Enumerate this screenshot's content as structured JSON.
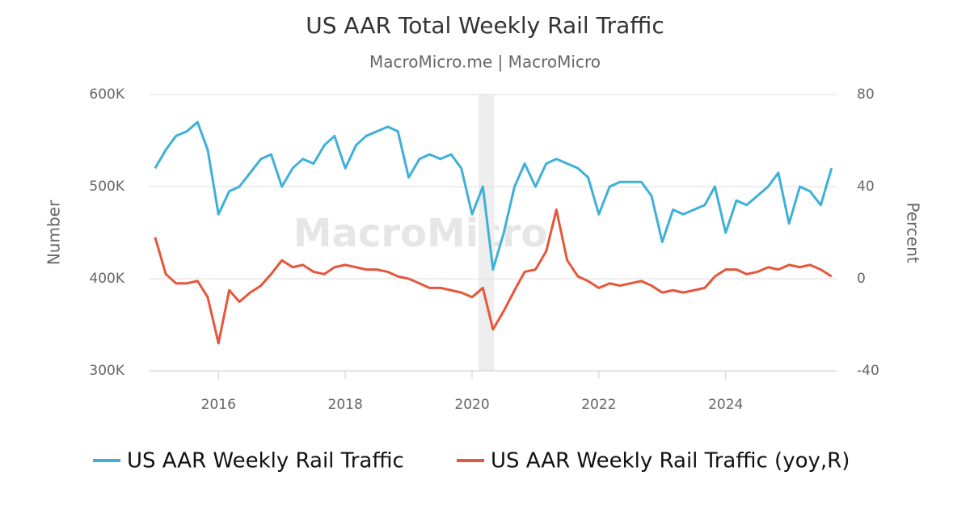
{
  "chart_data": {
    "type": "line",
    "title": "US AAR Total Weekly Rail Traffic",
    "subtitle": "MacroMicro.me | MacroMicro",
    "watermark": "MacroMicro",
    "y_label": "Number",
    "y2_label": "Percent",
    "xlim": [
      2014.9,
      2025.75
    ],
    "xticks": [
      2016,
      2018,
      2020,
      2022,
      2024
    ],
    "ylim": [
      300000,
      600000
    ],
    "yticks": [
      {
        "value": 300000,
        "label": "300K"
      },
      {
        "value": 400000,
        "label": "400K"
      },
      {
        "value": 500000,
        "label": "500K"
      },
      {
        "value": 600000,
        "label": "600K"
      }
    ],
    "y2lim": [
      -40,
      80
    ],
    "y2ticks": [
      -40,
      0,
      40,
      80
    ],
    "grid": true,
    "legend": "bottom",
    "shaded_periods": [
      [
        2020.1,
        2020.35
      ]
    ],
    "x": [
      2015,
      2015.17,
      2015.33,
      2015.5,
      2015.67,
      2015.83,
      2016,
      2016.17,
      2016.33,
      2016.5,
      2016.67,
      2016.83,
      2017,
      2017.17,
      2017.33,
      2017.5,
      2017.67,
      2017.83,
      2018,
      2018.17,
      2018.33,
      2018.5,
      2018.67,
      2018.83,
      2019,
      2019.17,
      2019.33,
      2019.5,
      2019.67,
      2019.83,
      2020,
      2020.17,
      2020.33,
      2020.5,
      2020.67,
      2020.83,
      2021,
      2021.17,
      2021.33,
      2021.5,
      2021.67,
      2021.83,
      2022,
      2022.17,
      2022.33,
      2022.5,
      2022.67,
      2022.83,
      2023,
      2023.17,
      2023.33,
      2023.5,
      2023.67,
      2023.83,
      2024,
      2024.17,
      2024.33,
      2024.5,
      2024.67,
      2024.83,
      2025,
      2025.17,
      2025.33,
      2025.5,
      2025.67
    ],
    "series": [
      {
        "name": "US AAR Weekly Rail Traffic",
        "color": "#3eb0d8",
        "axis": "y",
        "values": [
          520000,
          540000,
          555000,
          560000,
          570000,
          540000,
          470000,
          495000,
          500000,
          515000,
          530000,
          535000,
          500000,
          520000,
          530000,
          525000,
          545000,
          555000,
          520000,
          545000,
          555000,
          560000,
          565000,
          560000,
          510000,
          530000,
          535000,
          530000,
          535000,
          520000,
          470000,
          500000,
          410000,
          450000,
          500000,
          525000,
          500000,
          525000,
          530000,
          525000,
          520000,
          510000,
          470000,
          500000,
          505000,
          505000,
          505000,
          490000,
          440000,
          475000,
          470000,
          475000,
          480000,
          500000,
          450000,
          485000,
          480000,
          490000,
          500000,
          515000,
          460000,
          500000,
          495000,
          480000,
          520000
        ]
      },
      {
        "name": "US AAR Weekly Rail Traffic (yoy,R)",
        "color": "#e4573b",
        "axis": "y2",
        "values": [
          18,
          2,
          -2,
          -2,
          -1,
          -8,
          -28,
          -5,
          -10,
          -6,
          -3,
          2,
          8,
          5,
          6,
          3,
          2,
          5,
          6,
          5,
          4,
          4,
          3,
          1,
          0,
          -2,
          -4,
          -4,
          -5,
          -6,
          -8,
          -4,
          -22,
          -14,
          -5,
          3,
          4,
          12,
          30,
          8,
          1,
          -1,
          -4,
          -2,
          -3,
          -2,
          -1,
          -3,
          -6,
          -5,
          -6,
          -5,
          -4,
          1,
          4,
          4,
          2,
          3,
          5,
          4,
          6,
          5,
          6,
          4,
          1
        ]
      }
    ]
  }
}
